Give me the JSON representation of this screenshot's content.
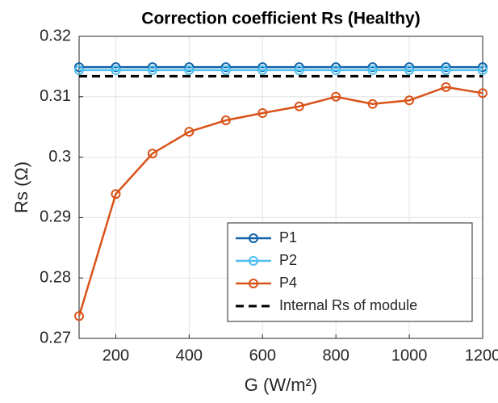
{
  "chart_data": {
    "type": "line",
    "title": "Correction coefficient Rs (Healthy)",
    "xlabel": "G (W/m²)",
    "ylabel": "Rs (Ω)",
    "x": [
      100,
      200,
      300,
      400,
      500,
      600,
      700,
      800,
      900,
      1000,
      1100,
      1200
    ],
    "series": [
      {
        "name": "P1",
        "color": "#0f62a8",
        "marker": "o",
        "style": "solid",
        "values": [
          0.3149,
          0.3149,
          0.3149,
          0.3149,
          0.3149,
          0.3149,
          0.3149,
          0.3149,
          0.3149,
          0.3149,
          0.3149,
          0.3149
        ]
      },
      {
        "name": "P2",
        "color": "#4dbeee",
        "marker": "o",
        "style": "solid",
        "values": [
          0.3144,
          0.3144,
          0.3144,
          0.3144,
          0.3144,
          0.3144,
          0.3144,
          0.3144,
          0.3144,
          0.3144,
          0.3144,
          0.3144
        ]
      },
      {
        "name": "P4",
        "color": "#d95319",
        "marker": "o",
        "style": "solid",
        "values": [
          0.2737,
          0.2939,
          0.3006,
          0.3042,
          0.3061,
          0.3073,
          0.3084,
          0.31,
          0.3088,
          0.3094,
          0.3116,
          0.3106
        ]
      },
      {
        "name": "Internal Rs of module",
        "color": "#000000",
        "marker": "none",
        "style": "dashed",
        "values": [
          0.3134,
          0.3134,
          0.3134,
          0.3134,
          0.3134,
          0.3134,
          0.3134,
          0.3134,
          0.3134,
          0.3134,
          0.3134,
          0.3134
        ]
      }
    ],
    "xlim": [
      100,
      1200
    ],
    "xticks": [
      200,
      400,
      600,
      800,
      1000,
      1200
    ],
    "ylim": [
      0.27,
      0.32
    ],
    "yticks": [
      0.27,
      0.28,
      0.29,
      0.3,
      0.31,
      0.32
    ],
    "grid": true,
    "legend": "lower right"
  }
}
